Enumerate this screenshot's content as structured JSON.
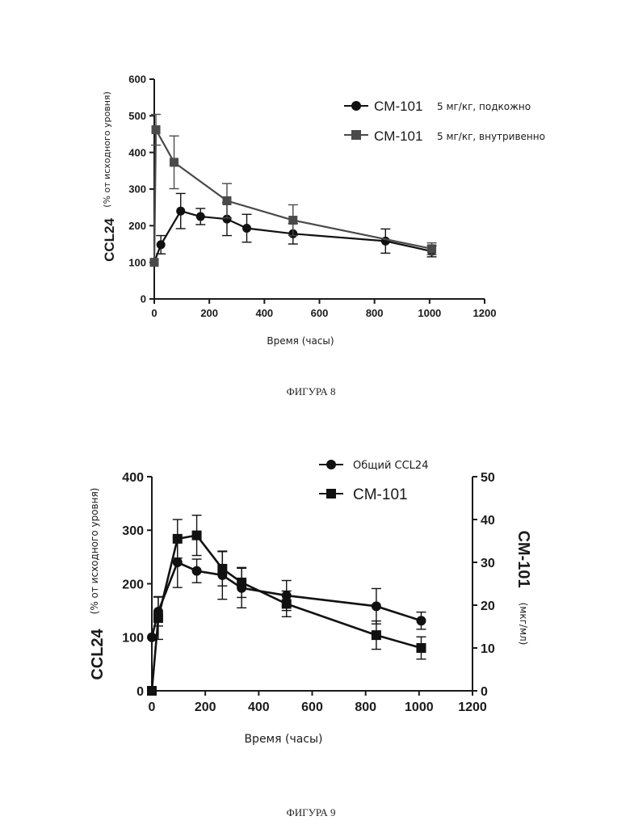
{
  "figures": [
    {
      "caption": "ФИГУРА 8"
    },
    {
      "caption": "ФИГУРА 9"
    }
  ],
  "chart_data": [
    {
      "type": "line",
      "xlabel": "Время (часы)",
      "ylabel_main": "CCL24",
      "ylabel_sub": "(% от исходного уровня)",
      "xlim": [
        0,
        1200
      ],
      "ylim": [
        0,
        600
      ],
      "xticks": [
        "0",
        "200",
        "400",
        "600",
        "800",
        "1000",
        "1200"
      ],
      "yticks": [
        "0",
        "100",
        "200",
        "300",
        "400",
        "500",
        "600"
      ],
      "legend_position": "top-right",
      "series": [
        {
          "name": "CM-101",
          "name_suffix": "5 мг/кг, подкожно",
          "marker": "circle",
          "color": "#111111",
          "x": [
            0,
            24,
            96,
            168,
            264,
            336,
            504,
            840,
            1008
          ],
          "y": [
            100,
            148,
            240,
            225,
            218,
            193,
            178,
            158,
            130
          ],
          "err": [
            0,
            25,
            48,
            22,
            45,
            38,
            28,
            33,
            15
          ]
        },
        {
          "name": "CM-101",
          "name_suffix": "5 мг/кг, внутривенно",
          "marker": "square",
          "color": "#4a4a4a",
          "x": [
            0,
            6,
            72,
            264,
            504,
            1008
          ],
          "y": [
            100,
            462,
            373,
            268,
            215,
            137
          ],
          "err": [
            0,
            42,
            72,
            47,
            42,
            16
          ]
        }
      ]
    },
    {
      "type": "line",
      "xlabel": "Время (часы)",
      "ylabel_main": "CCL24",
      "ylabel_sub": "(% от исходного уровня)",
      "y2label_main": "CM-101",
      "y2label_sub": "(мкг/мл)",
      "xlim": [
        0,
        1200
      ],
      "ylim": [
        0,
        400
      ],
      "y2lim": [
        0,
        50
      ],
      "xticks": [
        "0",
        "200",
        "400",
        "600",
        "800",
        "1000",
        "1200"
      ],
      "yticks": [
        "0",
        "100",
        "200",
        "300",
        "400"
      ],
      "y2ticks": [
        "0",
        "10",
        "20",
        "30",
        "40",
        "50"
      ],
      "legend_position": "top-right",
      "series": [
        {
          "name": "Общий CCL24",
          "marker": "circle",
          "axis": "left",
          "color": "#111111",
          "x": [
            0,
            24,
            96,
            168,
            264,
            336,
            504,
            840,
            1008
          ],
          "y": [
            100,
            148,
            240,
            224,
            216,
            192,
            178,
            158,
            131
          ],
          "err": [
            0,
            27,
            47,
            22,
            45,
            37,
            28,
            33,
            16
          ]
        },
        {
          "name": "CM-101",
          "marker": "square",
          "axis": "right",
          "color": "#111111",
          "x": [
            0,
            24,
            96,
            168,
            264,
            336,
            504,
            840,
            1008
          ],
          "y": [
            0,
            17,
            35.5,
            36.3,
            28.5,
            25.3,
            20.3,
            13,
            10
          ],
          "err": [
            0,
            5,
            4.5,
            4.7,
            4,
            3.5,
            3,
            3.3,
            2.6
          ]
        }
      ]
    }
  ]
}
